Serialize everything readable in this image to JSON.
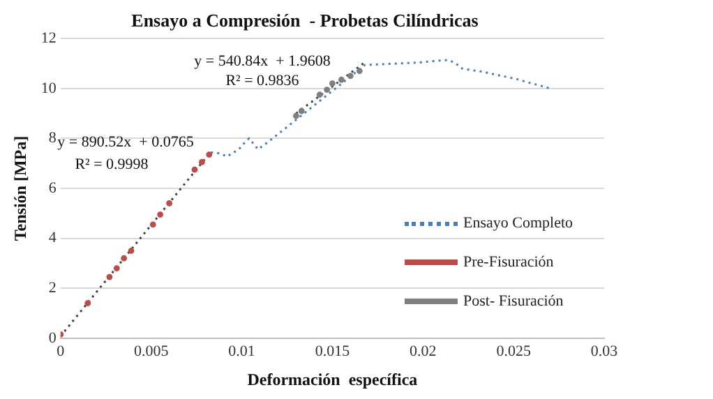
{
  "chart_data": {
    "type": "scatter",
    "title": "Ensayo a Compresión  - Probetas Cilíndricas",
    "xlabel": "Deformación  específica",
    "ylabel": "Tensión [MPa]",
    "xlim": [
      0,
      0.03
    ],
    "xticks": [
      0,
      0.005,
      0.01,
      0.015,
      0.02,
      0.025,
      0.03
    ],
    "ylim": [
      0,
      12
    ],
    "yticks": [
      0,
      2,
      4,
      6,
      8,
      10,
      12
    ],
    "grid": "y",
    "legend": "right",
    "series": [
      {
        "name": "Ensayo Completo",
        "type": "line",
        "line_style": "dotted",
        "marker": "none",
        "color": "#4a7ebb",
        "x": [
          0.0083,
          0.0088,
          0.0092,
          0.0095,
          0.0098,
          0.0101,
          0.0104,
          0.0106,
          0.0109,
          0.0112,
          0.0116,
          0.0168,
          0.0198,
          0.0205,
          0.0211,
          0.0214,
          0.0218,
          0.0221,
          0.0226,
          0.0233,
          0.0239,
          0.0245,
          0.0252,
          0.0258,
          0.0265,
          0.0271
        ],
        "values": [
          7.44,
          7.4,
          7.27,
          7.43,
          7.53,
          7.78,
          8.0,
          7.83,
          7.56,
          7.72,
          7.94,
          10.94,
          11.04,
          11.09,
          11.13,
          11.13,
          11.02,
          10.81,
          10.74,
          10.67,
          10.57,
          10.48,
          10.37,
          10.24,
          10.11,
          9.98
        ]
      },
      {
        "name": "Pre-Fisuración",
        "marker": "circle",
        "color": "#be4b48",
        "x": [
          0,
          0.0015,
          0.0027,
          0.0031,
          0.0035,
          0.0039,
          0.0051,
          0.0055,
          0.006,
          0.0074,
          0.0078,
          0.0082
        ],
        "values": [
          0.15,
          1.4,
          2.45,
          2.8,
          3.2,
          3.5,
          4.55,
          4.95,
          5.4,
          6.75,
          7.05,
          7.35
        ]
      },
      {
        "name": "Post- Fisuración",
        "marker": "circle",
        "color": "#7f7f7f",
        "x": [
          0.013,
          0.0133,
          0.0143,
          0.0147,
          0.015,
          0.0155,
          0.016,
          0.0165
        ],
        "values": [
          8.9,
          9.1,
          9.75,
          9.95,
          10.2,
          10.35,
          10.5,
          10.7
        ]
      },
      {
        "type": "line",
        "line_style": "dotted",
        "marker": "none",
        "color": "#404040",
        "x": [
          0,
          0.0083
        ],
        "values": [
          0.08,
          7.47
        ]
      },
      {
        "type": "line",
        "line_style": "dotted",
        "marker": "none",
        "color": "#404040",
        "x": [
          0.013,
          0.0168
        ],
        "values": [
          9.0,
          11.05
        ]
      }
    ],
    "annotations": [
      "y = 890.52x  + 0.0765",
      "R² = 0.9998",
      "y = 540.84x  + 1.9608",
      "R² = 0.9836"
    ]
  }
}
